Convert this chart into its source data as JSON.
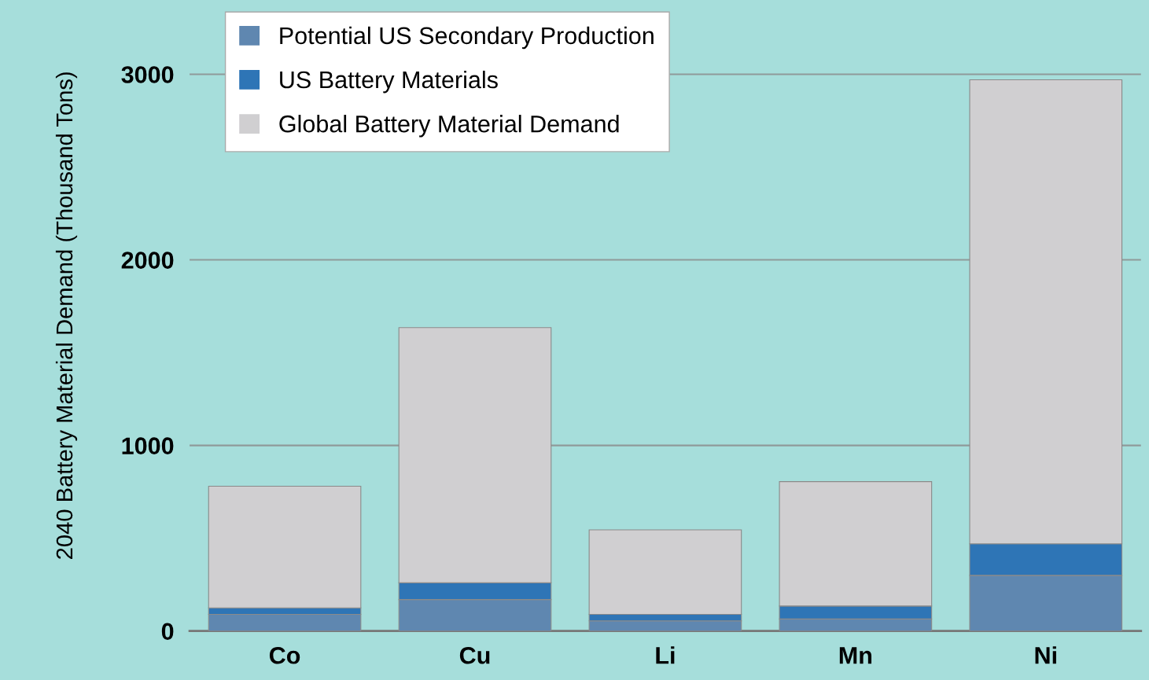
{
  "chart_data": {
    "type": "bar",
    "stacked": true,
    "ylabel": "2040 Battery Material Demand (Thousand Tons)",
    "categories": [
      "Co",
      "Cu",
      "Li",
      "Mn",
      "Ni"
    ],
    "series": [
      {
        "name": "Potential US Secondary Production",
        "color": "#5f87b0",
        "values": [
          90,
          170,
          55,
          65,
          300
        ]
      },
      {
        "name": "US Battery Materials",
        "color": "#2e75b6",
        "values": [
          35,
          90,
          35,
          70,
          170
        ]
      },
      {
        "name": "Global Battery Material Demand",
        "color": "#d0cfd1",
        "values": [
          655,
          1375,
          455,
          670,
          2500
        ]
      }
    ],
    "ylim": [
      0,
      3400
    ],
    "yticks": [
      0,
      1000,
      2000,
      3000
    ],
    "grid": "y",
    "legend": "top left"
  }
}
